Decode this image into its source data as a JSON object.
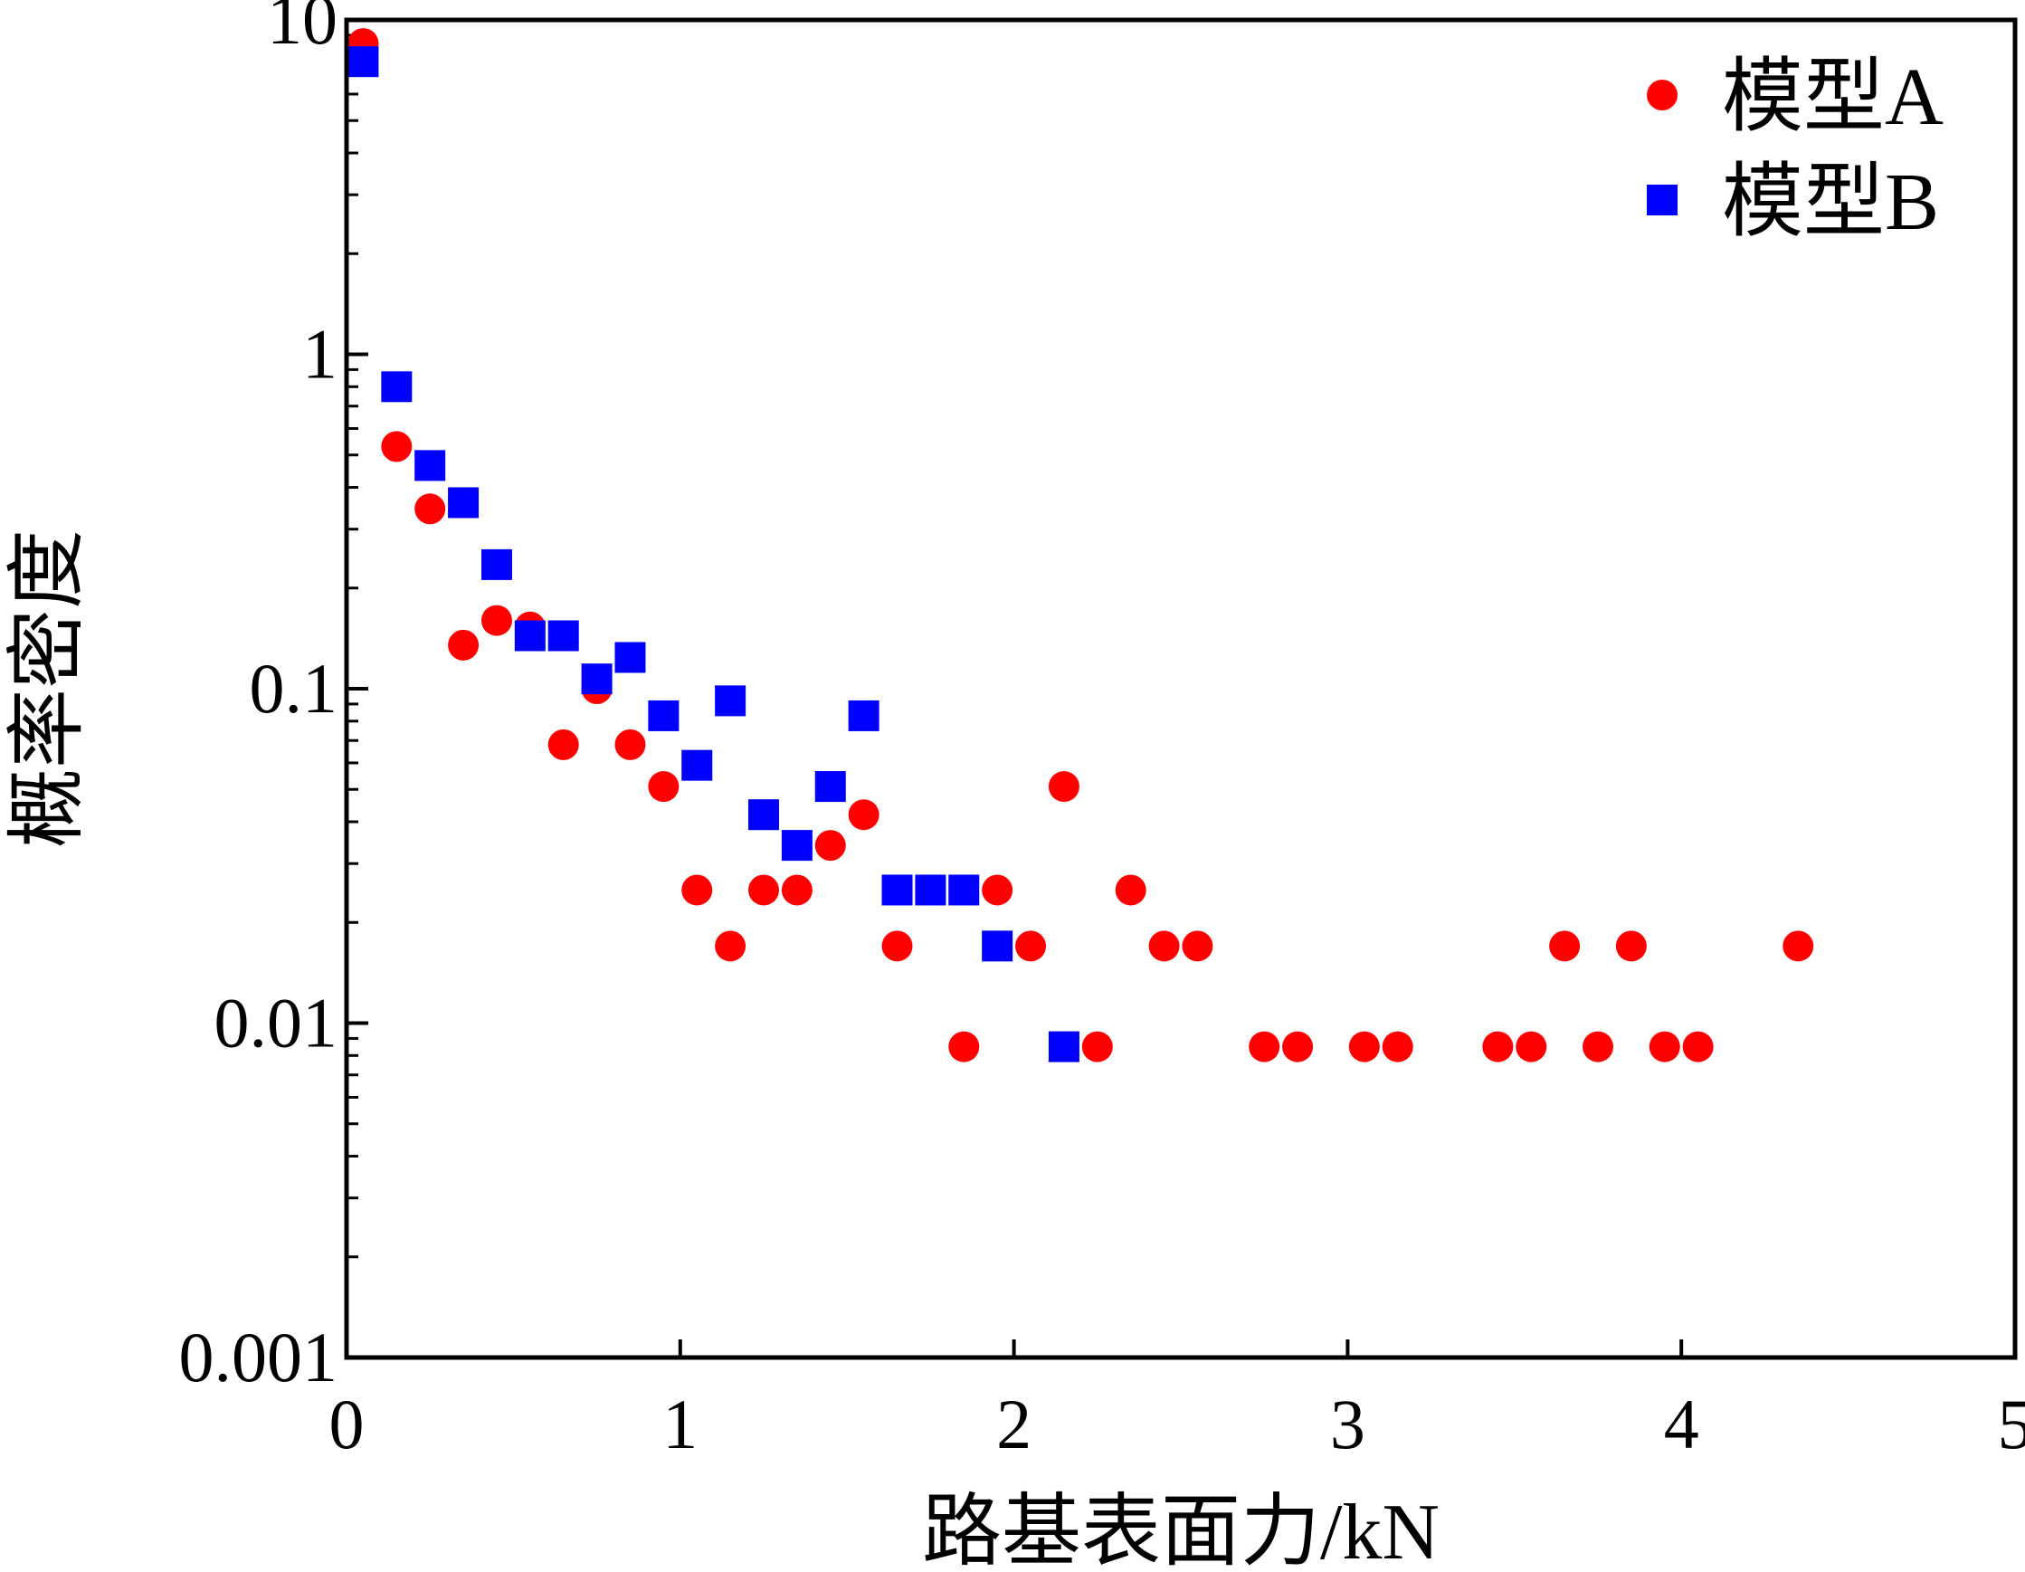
{
  "chart_data": {
    "type": "scatter",
    "title": "",
    "xlabel": "路基表面力/kN",
    "ylabel": "概率密度",
    "xlim": [
      0,
      5
    ],
    "ylim": [
      0.001,
      10
    ],
    "yscale": "log",
    "grid": false,
    "legend_position": "top-right",
    "x_ticks": [
      {
        "value": 0,
        "label": "0"
      },
      {
        "value": 1,
        "label": "1"
      },
      {
        "value": 2,
        "label": "2"
      },
      {
        "value": 3,
        "label": "3"
      },
      {
        "value": 4,
        "label": "4"
      },
      {
        "value": 5,
        "label": "5"
      }
    ],
    "y_ticks": [
      {
        "value": 0.001,
        "label": "0.001"
      },
      {
        "value": 0.01,
        "label": "0.01"
      },
      {
        "value": 0.1,
        "label": "0.1"
      },
      {
        "value": 1,
        "label": "1"
      },
      {
        "value": 10,
        "label": "10"
      }
    ],
    "series": [
      {
        "name": "模型A",
        "marker": "circle",
        "color": "#ff0000",
        "points": [
          [
            0.05,
            8.5
          ],
          [
            0.15,
            0.53
          ],
          [
            0.25,
            0.345
          ],
          [
            0.35,
            0.135
          ],
          [
            0.45,
            0.16
          ],
          [
            0.55,
            0.153
          ],
          [
            0.65,
            0.068
          ],
          [
            0.75,
            0.1
          ],
          [
            0.85,
            0.068
          ],
          [
            0.95,
            0.051
          ],
          [
            1.05,
            0.025
          ],
          [
            1.15,
            0.017
          ],
          [
            1.25,
            0.025
          ],
          [
            1.35,
            0.025
          ],
          [
            1.45,
            0.034
          ],
          [
            1.55,
            0.042
          ],
          [
            1.65,
            0.017
          ],
          [
            1.85,
            0.0085
          ],
          [
            1.95,
            0.025
          ],
          [
            2.05,
            0.017
          ],
          [
            2.15,
            0.051
          ],
          [
            2.25,
            0.0085
          ],
          [
            2.35,
            0.025
          ],
          [
            2.45,
            0.017
          ],
          [
            2.55,
            0.017
          ],
          [
            2.75,
            0.0085
          ],
          [
            2.85,
            0.0085
          ],
          [
            3.05,
            0.0085
          ],
          [
            3.15,
            0.0085
          ],
          [
            3.45,
            0.0085
          ],
          [
            3.55,
            0.0085
          ],
          [
            3.65,
            0.017
          ],
          [
            3.75,
            0.0085
          ],
          [
            3.85,
            0.017
          ],
          [
            3.95,
            0.0085
          ],
          [
            4.05,
            0.0085
          ],
          [
            4.35,
            0.017
          ]
        ]
      },
      {
        "name": "模型B",
        "marker": "square",
        "color": "#0000ff",
        "points": [
          [
            0.05,
            7.5
          ],
          [
            0.15,
            0.8
          ],
          [
            0.25,
            0.465
          ],
          [
            0.35,
            0.36
          ],
          [
            0.45,
            0.235
          ],
          [
            0.55,
            0.144
          ],
          [
            0.65,
            0.144
          ],
          [
            0.75,
            0.107
          ],
          [
            0.85,
            0.124
          ],
          [
            0.95,
            0.083
          ],
          [
            1.05,
            0.059
          ],
          [
            1.15,
            0.092
          ],
          [
            1.25,
            0.042
          ],
          [
            1.35,
            0.034
          ],
          [
            1.45,
            0.051
          ],
          [
            1.55,
            0.083
          ],
          [
            1.65,
            0.025
          ],
          [
            1.75,
            0.025
          ],
          [
            1.85,
            0.025
          ],
          [
            1.95,
            0.017
          ],
          [
            2.15,
            0.0085
          ]
        ]
      }
    ]
  }
}
